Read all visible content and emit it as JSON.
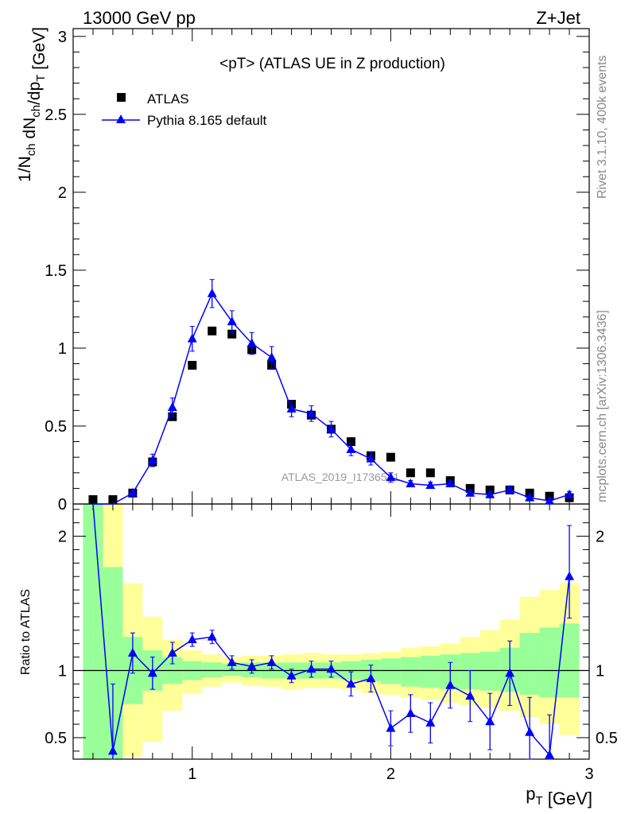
{
  "header": {
    "left": "13000 GeV pp",
    "right": "Z+Jet"
  },
  "side": {
    "top": "Rivet 3.1.10,  400k events",
    "bottom": "mcplots.cern.ch [arXiv:1306.3436]"
  },
  "chart_data": [
    {
      "type": "scatter",
      "title": "<pT> (ATLAS UE in Z production)",
      "ylabel": "1/N_ch dN_ch/dp_T [GeV]",
      "watermark": "ATLAS_2019_I1736531",
      "xlim": [
        0.4,
        3.0
      ],
      "ylim": [
        0,
        3.05
      ],
      "yticks": [
        "0",
        "0.5",
        "1",
        "1.5",
        "2",
        "2.5",
        "3"
      ],
      "legend_position": "top-left",
      "x": [
        0.5,
        0.6,
        0.7,
        0.8,
        0.9,
        1.0,
        1.1,
        1.2,
        1.3,
        1.4,
        1.5,
        1.6,
        1.7,
        1.8,
        1.9,
        2.0,
        2.1,
        2.2,
        2.3,
        2.4,
        2.5,
        2.6,
        2.7,
        2.8,
        2.9
      ],
      "series": [
        {
          "name": "ATLAS",
          "marker": "square",
          "color": "#000000",
          "values": [
            0.0,
            0.01,
            0.07,
            0.27,
            0.56,
            0.89,
            1.11,
            1.09,
            0.99,
            0.89,
            0.64,
            0.57,
            0.48,
            0.4,
            0.31,
            0.3,
            0.2,
            0.2,
            0.15,
            0.1,
            0.09,
            0.09,
            0.07,
            0.05,
            0.04
          ]
        },
        {
          "name": "Pythia 8.165 default",
          "marker": "triangle",
          "color": "#0000ff",
          "values": [
            0.0,
            0.0,
            0.07,
            0.28,
            0.62,
            1.06,
            1.35,
            1.17,
            1.03,
            0.94,
            0.61,
            0.58,
            0.48,
            0.35,
            0.29,
            0.17,
            0.13,
            0.12,
            0.13,
            0.07,
            0.06,
            0.09,
            0.04,
            0.02,
            0.06
          ],
          "errors": [
            0.0,
            0.0,
            0.01,
            0.04,
            0.06,
            0.08,
            0.09,
            0.07,
            0.07,
            0.07,
            0.05,
            0.05,
            0.05,
            0.04,
            0.04,
            0.03,
            0.02,
            0.02,
            0.02,
            0.02,
            0.02,
            0.02,
            0.02,
            0.02,
            0.02
          ]
        }
      ]
    },
    {
      "type": "line",
      "ylabel": "Ratio to ATLAS",
      "xlabel": "p_T [GeV]",
      "xlim": [
        0.4,
        3.0
      ],
      "ylim": [
        0.34,
        2.24
      ],
      "xticks": [
        "1",
        "2",
        "3"
      ],
      "yticks": [
        "0.5",
        "1",
        "2"
      ],
      "reference_line": 1.0,
      "x_bins": [
        0.45,
        0.55,
        0.65,
        0.75,
        0.85,
        0.95,
        1.05,
        1.15,
        1.25,
        1.35,
        1.45,
        1.55,
        1.65,
        1.75,
        1.85,
        1.95,
        2.05,
        2.15,
        2.25,
        2.35,
        2.45,
        2.55,
        2.65,
        2.75,
        2.85,
        2.95
      ],
      "bands": [
        {
          "name": "yellow",
          "color": "#ffff99",
          "lo": [
            0.34,
            0.34,
            0.36,
            0.47,
            0.7,
            0.83,
            0.88,
            0.91,
            0.89,
            0.88,
            0.86,
            0.87,
            0.87,
            0.86,
            0.83,
            0.82,
            0.8,
            0.78,
            0.76,
            0.74,
            0.72,
            0.7,
            0.65,
            0.6,
            0.52
          ],
          "hi": [
            2.24,
            2.24,
            1.65,
            1.4,
            1.23,
            1.15,
            1.12,
            1.1,
            1.11,
            1.11,
            1.12,
            1.13,
            1.12,
            1.12,
            1.13,
            1.14,
            1.17,
            1.18,
            1.2,
            1.25,
            1.3,
            1.38,
            1.55,
            1.6,
            1.65
          ]
        },
        {
          "name": "green",
          "color": "#99ff99",
          "lo": [
            0.34,
            0.34,
            0.75,
            0.85,
            0.9,
            0.93,
            0.95,
            0.96,
            0.95,
            0.94,
            0.94,
            0.94,
            0.94,
            0.93,
            0.92,
            0.9,
            0.88,
            0.87,
            0.86,
            0.86,
            0.85,
            0.84,
            0.82,
            0.8,
            0.8
          ],
          "hi": [
            2.24,
            1.77,
            1.25,
            1.15,
            1.1,
            1.07,
            1.06,
            1.05,
            1.06,
            1.06,
            1.06,
            1.06,
            1.06,
            1.07,
            1.08,
            1.09,
            1.1,
            1.11,
            1.12,
            1.13,
            1.14,
            1.17,
            1.28,
            1.32,
            1.35
          ]
        }
      ],
      "series": [
        {
          "name": "Pythia 8.165 default",
          "color": "#0000ff",
          "x": [
            0.5,
            0.6,
            0.7,
            0.8,
            0.9,
            1.0,
            1.1,
            1.2,
            1.3,
            1.4,
            1.5,
            1.6,
            1.7,
            1.8,
            1.9,
            2.0,
            2.1,
            2.2,
            2.3,
            2.4,
            2.5,
            2.6,
            2.7,
            2.8,
            2.9
          ],
          "values": [
            4.0,
            0.4,
            1.13,
            0.98,
            1.13,
            1.23,
            1.25,
            1.06,
            1.03,
            1.06,
            0.96,
            1.01,
            1.01,
            0.9,
            0.94,
            0.57,
            0.68,
            0.61,
            0.89,
            0.81,
            0.62,
            0.98,
            0.54,
            0.37,
            1.7
          ],
          "err_lo": [
            0.0,
            0.5,
            0.15,
            0.12,
            0.08,
            0.05,
            0.05,
            0.05,
            0.05,
            0.05,
            0.05,
            0.06,
            0.06,
            0.09,
            0.1,
            0.13,
            0.14,
            0.15,
            0.17,
            0.19,
            0.21,
            0.24,
            0.26,
            0.3,
            0.31
          ],
          "err_hi": [
            0.0,
            0.5,
            0.15,
            0.12,
            0.08,
            0.05,
            0.05,
            0.05,
            0.05,
            0.05,
            0.05,
            0.06,
            0.06,
            0.09,
            0.1,
            0.13,
            0.14,
            0.15,
            0.17,
            0.19,
            0.21,
            0.24,
            0.26,
            0.3,
            0.38
          ]
        }
      ]
    }
  ]
}
